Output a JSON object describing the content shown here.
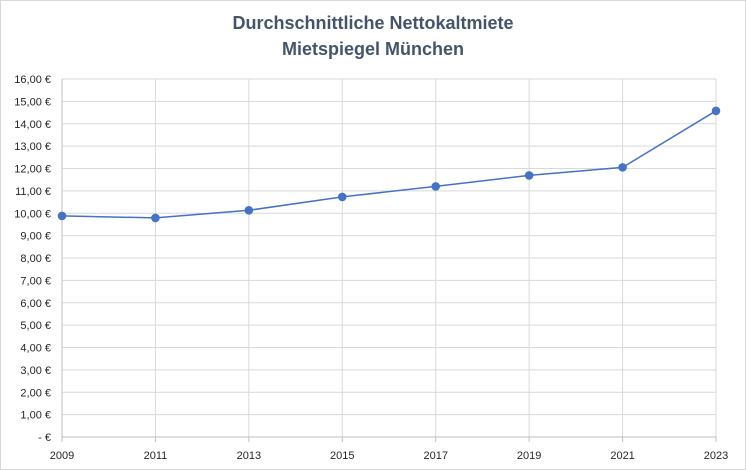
{
  "chart_data": {
    "type": "line",
    "title_lines": [
      "Durchschnittliche Nettokaltmiete",
      "Mietspiegel München"
    ],
    "x": [
      "2009",
      "2011",
      "2013",
      "2015",
      "2017",
      "2019",
      "2021",
      "2023"
    ],
    "series": [
      {
        "values": [
          9.88,
          9.79,
          10.13,
          10.73,
          11.2,
          11.69,
          12.05,
          14.58
        ]
      }
    ],
    "ylim": [
      0,
      16
    ],
    "y_ticks": [
      {
        "value": 0,
        "label": "-  €"
      },
      {
        "value": 1,
        "label": "1,00 €"
      },
      {
        "value": 2,
        "label": "2,00 €"
      },
      {
        "value": 3,
        "label": "3,00 €"
      },
      {
        "value": 4,
        "label": "4,00 €"
      },
      {
        "value": 5,
        "label": "5,00 €"
      },
      {
        "value": 6,
        "label": "6,00 €"
      },
      {
        "value": 7,
        "label": "7,00 €"
      },
      {
        "value": 8,
        "label": "8,00 €"
      },
      {
        "value": 9,
        "label": "9,00 €"
      },
      {
        "value": 10,
        "label": "10,00 €"
      },
      {
        "value": 11,
        "label": "11,00 €"
      },
      {
        "value": 12,
        "label": "12,00 €"
      },
      {
        "value": 13,
        "label": "13,00 €"
      },
      {
        "value": 14,
        "label": "14,00 €"
      },
      {
        "value": 15,
        "label": "15,00 €"
      },
      {
        "value": 16,
        "label": "16,00 €"
      }
    ],
    "grid": "horizontal and vertical",
    "colors": {
      "line": "#4472c4",
      "grid": "#d9d9d9",
      "title": "#44546a"
    }
  }
}
